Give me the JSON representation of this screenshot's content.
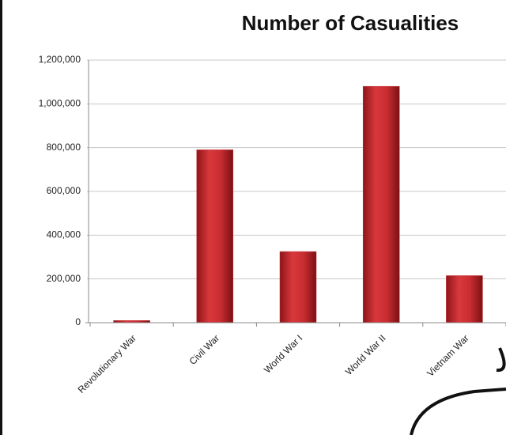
{
  "chart_data": {
    "type": "bar",
    "title": "Number of Casualities",
    "categories": [
      "Revolutionary War",
      "Civil War",
      "World War I",
      "World War II",
      "Vietnam War"
    ],
    "values": [
      10000,
      790000,
      325000,
      1080000,
      215000
    ],
    "color": "#c0282d",
    "ylim": [
      0,
      1200000
    ],
    "yticks": [
      0,
      {
        "value": 200000,
        "label": "200,000"
      },
      {
        "value": 400000,
        "label": "400,000"
      },
      {
        "value": 600000,
        "label": "600,000"
      },
      {
        "value": 800000,
        "label": "800,000"
      },
      {
        "value": 1000000,
        "label": "1,000,000"
      },
      {
        "value": 1200000,
        "label": "1,200,000"
      }
    ],
    "grid": true
  }
}
